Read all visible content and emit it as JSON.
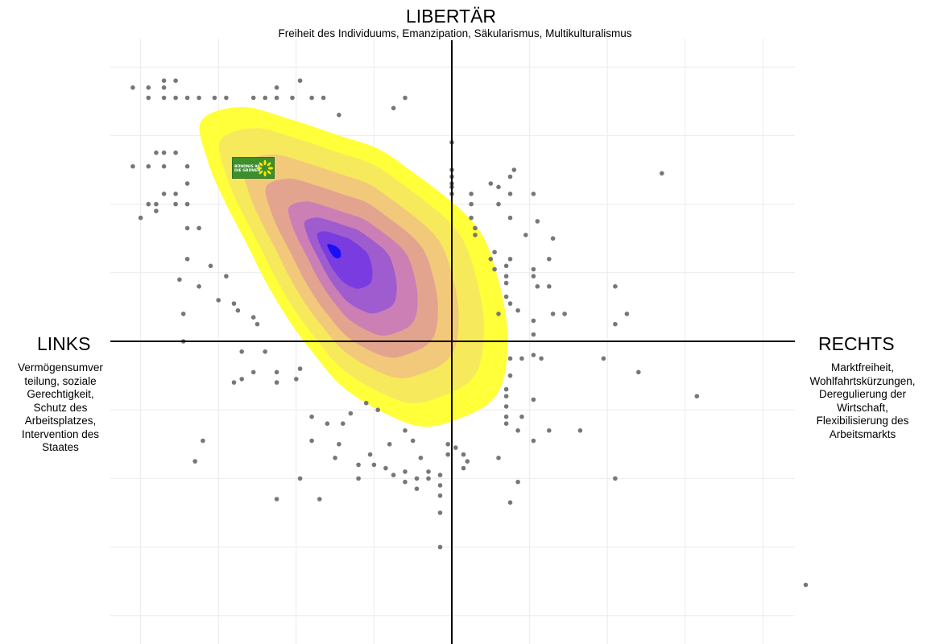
{
  "chart_data": {
    "type": "scatter",
    "title": "LIBERTÄR",
    "subtitle": "Freiheit des Individuums, Emanzipation, Säkularismus, Multikulturalismus",
    "x_axis": {
      "left_label": "LINKS",
      "left_description": [
        "Vermögensumver",
        "teilung, soziale",
        "Gerechtigkeit,",
        "Schutz des",
        "Arbeitsplatzes,",
        "Intervention des",
        "Staates"
      ],
      "right_label": "RECHTS",
      "right_description": [
        "Marktfreiheit,",
        "Wohlfahrtskürzungen,",
        "Deregulierung der",
        "Wirtschaft,",
        "Flexibilisierung des",
        "Arbeitsmarkts"
      ]
    },
    "xlim": [
      -9,
      10
    ],
    "ylim": [
      -8,
      8.5
    ],
    "grid": true,
    "quadrant_lines": {
      "x": 0,
      "y": 0
    },
    "density_levels": [
      {
        "level": 1,
        "color": "#ffff3a"
      },
      {
        "level": 2,
        "color": "#f7e95c"
      },
      {
        "level": 3,
        "color": "#f2c87a"
      },
      {
        "level": 4,
        "color": "#e2a48e"
      },
      {
        "level": 5,
        "color": "#cc7fb5"
      },
      {
        "level": 6,
        "color": "#9e5ccf"
      },
      {
        "level": 7,
        "color": "#7a3ce0"
      },
      {
        "level": 8,
        "color": "#1a10f5"
      }
    ],
    "density_peak": [
      -3.05,
      2.65
    ],
    "party_marker": {
      "name": "Bündnis 90 / Die Grünen",
      "x": -5.8,
      "y": 5.05,
      "logo_text": [
        "BÜNDNIS 90",
        "DIE GRÜNEN"
      ],
      "color": "#3d8f2b"
    },
    "point_color": "#777777",
    "points": [
      [
        -8.2,
        7.4
      ],
      [
        -7.8,
        7.1
      ],
      [
        -7.8,
        7.4
      ],
      [
        -7.4,
        7.1
      ],
      [
        -7.4,
        7.4
      ],
      [
        -7.4,
        7.6
      ],
      [
        -7.1,
        7.6
      ],
      [
        -7.1,
        7.1
      ],
      [
        -6.8,
        7.1
      ],
      [
        -6.5,
        7.1
      ],
      [
        -6.1,
        7.1
      ],
      [
        -5.8,
        7.1
      ],
      [
        -5.1,
        7.1
      ],
      [
        -4.5,
        7.4
      ],
      [
        -4.8,
        7.1
      ],
      [
        -4.5,
        7.1
      ],
      [
        -4.1,
        7.1
      ],
      [
        -3.9,
        7.6
      ],
      [
        -3.6,
        7.1
      ],
      [
        -3.3,
        7.1
      ],
      [
        -2.9,
        6.6
      ],
      [
        -1.5,
        6.8
      ],
      [
        -1.2,
        7.1
      ],
      [
        -8.2,
        5.1
      ],
      [
        -7.8,
        5.1
      ],
      [
        -7.6,
        5.5
      ],
      [
        -7.4,
        5.5
      ],
      [
        -7.1,
        5.5
      ],
      [
        -7.4,
        5.1
      ],
      [
        -6.8,
        5.1
      ],
      [
        -6.8,
        4.6
      ],
      [
        -7.4,
        4.3
      ],
      [
        -7.1,
        4.3
      ],
      [
        -7.6,
        4.0
      ],
      [
        -7.8,
        4.0
      ],
      [
        -7.1,
        4.0
      ],
      [
        -6.8,
        4.0
      ],
      [
        -7.6,
        3.8
      ],
      [
        -8.0,
        3.6
      ],
      [
        -6.8,
        3.3
      ],
      [
        -6.5,
        3.3
      ],
      [
        -6.8,
        2.4
      ],
      [
        -6.2,
        2.2
      ],
      [
        -5.8,
        1.9
      ],
      [
        -7.0,
        1.8
      ],
      [
        -6.5,
        1.6
      ],
      [
        -6.0,
        1.2
      ],
      [
        -5.6,
        1.1
      ],
      [
        -5.5,
        0.9
      ],
      [
        -5.1,
        0.7
      ],
      [
        -6.9,
        0.8
      ],
      [
        -5.0,
        0.5
      ],
      [
        -6.9,
        0.0
      ],
      [
        0.0,
        5.8
      ],
      [
        0.0,
        5.0
      ],
      [
        0.0,
        4.8
      ],
      [
        0.0,
        4.6
      ],
      [
        0.0,
        4.5
      ],
      [
        0.0,
        4.3
      ],
      [
        0.5,
        4.3
      ],
      [
        0.5,
        4.0
      ],
      [
        0.5,
        3.6
      ],
      [
        0.6,
        3.3
      ],
      [
        0.6,
        3.1
      ],
      [
        1.5,
        4.8
      ],
      [
        1.5,
        4.3
      ],
      [
        1.5,
        3.6
      ],
      [
        1.2,
        4.0
      ],
      [
        1.0,
        4.6
      ],
      [
        1.2,
        4.5
      ],
      [
        2.1,
        4.3
      ],
      [
        1.6,
        5.0
      ],
      [
        2.2,
        3.5
      ],
      [
        1.9,
        3.1
      ],
      [
        1.4,
        2.2
      ],
      [
        1.4,
        1.9
      ],
      [
        1.4,
        1.7
      ],
      [
        1.1,
        2.1
      ],
      [
        1.5,
        2.4
      ],
      [
        1.1,
        2.6
      ],
      [
        1.0,
        2.4
      ],
      [
        1.4,
        1.3
      ],
      [
        1.5,
        1.1
      ],
      [
        1.2,
        0.8
      ],
      [
        2.2,
        1.6
      ],
      [
        2.5,
        1.6
      ],
      [
        2.9,
        0.8
      ],
      [
        2.6,
        0.8
      ],
      [
        2.1,
        1.9
      ],
      [
        2.1,
        2.1
      ],
      [
        2.5,
        2.4
      ],
      [
        2.6,
        3.0
      ],
      [
        4.2,
        1.6
      ],
      [
        4.2,
        0.5
      ],
      [
        4.5,
        0.8
      ],
      [
        5.4,
        4.9
      ],
      [
        1.7,
        0.9
      ],
      [
        2.1,
        0.6
      ],
      [
        2.1,
        0.2
      ],
      [
        2.1,
        -0.4
      ],
      [
        2.3,
        -0.5
      ],
      [
        1.8,
        -0.5
      ],
      [
        1.5,
        -0.5
      ],
      [
        3.9,
        -0.5
      ],
      [
        4.8,
        -0.9
      ],
      [
        6.3,
        -1.6
      ],
      [
        1.5,
        -1.0
      ],
      [
        1.4,
        -1.4
      ],
      [
        1.4,
        -1.6
      ],
      [
        1.4,
        -1.9
      ],
      [
        1.4,
        -2.2
      ],
      [
        1.4,
        -2.4
      ],
      [
        1.8,
        -2.2
      ],
      [
        2.1,
        -1.7
      ],
      [
        1.7,
        -2.6
      ],
      [
        2.5,
        -2.6
      ],
      [
        2.1,
        -2.9
      ],
      [
        3.3,
        -2.6
      ],
      [
        1.2,
        -3.4
      ],
      [
        1.7,
        -4.1
      ],
      [
        4.2,
        -4.0
      ],
      [
        1.5,
        -4.7
      ],
      [
        -0.3,
        -5.0
      ],
      [
        -0.3,
        -6.0
      ],
      [
        -6.4,
        -2.9
      ],
      [
        -6.6,
        -3.5
      ],
      [
        -4.5,
        -4.6
      ],
      [
        -3.9,
        -4.0
      ],
      [
        -3.4,
        -4.6
      ],
      [
        -3.6,
        -2.9
      ],
      [
        -2.9,
        -3.0
      ],
      [
        -3.0,
        -3.4
      ],
      [
        -2.4,
        -3.6
      ],
      [
        -2.0,
        -3.6
      ],
      [
        -2.4,
        -4.0
      ],
      [
        -2.1,
        -3.3
      ],
      [
        -1.6,
        -3.0
      ],
      [
        -1.2,
        -2.6
      ],
      [
        -1.0,
        -2.9
      ],
      [
        -0.8,
        -3.4
      ],
      [
        -1.7,
        -3.7
      ],
      [
        -1.2,
        -3.8
      ],
      [
        -0.9,
        -4.0
      ],
      [
        -0.6,
        -3.8
      ],
      [
        -0.3,
        -3.9
      ],
      [
        -0.3,
        -4.2
      ],
      [
        -0.6,
        -4.0
      ],
      [
        -0.9,
        -4.3
      ],
      [
        -1.2,
        -4.1
      ],
      [
        -1.5,
        -3.9
      ],
      [
        -0.3,
        -4.5
      ],
      [
        -3.6,
        -2.2
      ],
      [
        -3.2,
        -2.4
      ],
      [
        -2.8,
        -2.4
      ],
      [
        -2.6,
        -2.1
      ],
      [
        -2.2,
        -1.8
      ],
      [
        -1.9,
        -2.0
      ],
      [
        -5.4,
        -0.3
      ],
      [
        -5.1,
        -0.9
      ],
      [
        -5.4,
        -1.1
      ],
      [
        -5.6,
        -1.2
      ],
      [
        -4.8,
        -0.3
      ],
      [
        -4.5,
        -0.9
      ],
      [
        -4.5,
        -1.2
      ],
      [
        -4.0,
        -1.1
      ],
      [
        -3.9,
        -0.8
      ],
      [
        -0.1,
        -3.3
      ],
      [
        -0.1,
        -3.0
      ],
      [
        0.1,
        -3.1
      ],
      [
        0.3,
        -3.3
      ],
      [
        0.4,
        -3.5
      ],
      [
        0.3,
        -3.7
      ],
      [
        9.1,
        -7.1
      ]
    ]
  }
}
